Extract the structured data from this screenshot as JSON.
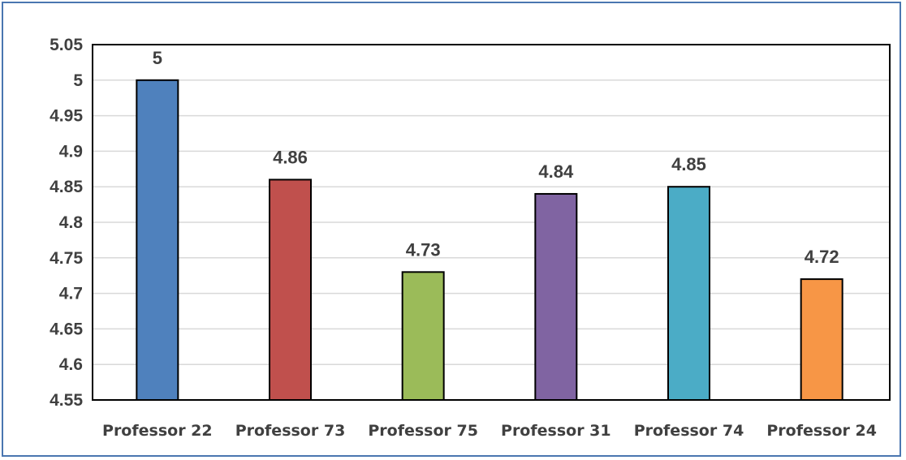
{
  "chart_data": {
    "type": "bar",
    "categories": [
      "Professor 22",
      "Professor 73",
      "Professor 75",
      "Professor 31",
      "Professor 74",
      "Professor 24"
    ],
    "values": [
      5,
      4.86,
      4.73,
      4.84,
      4.85,
      4.72
    ],
    "data_labels": [
      "5",
      "4.86",
      "4.73",
      "4.84",
      "4.85",
      "4.72"
    ],
    "colors": [
      "#4f81bd",
      "#c0504d",
      "#9bbb59",
      "#8064a2",
      "#4bacc6",
      "#f79646"
    ],
    "title": "",
    "xlabel": "",
    "ylabel": "",
    "ylim": [
      4.55,
      5.05
    ],
    "y_ticks": [
      4.55,
      4.6,
      4.65,
      4.7,
      4.75,
      4.8,
      4.85,
      4.9,
      4.95,
      5,
      5.05
    ],
    "y_tick_labels": [
      "4.55",
      "4.6",
      "4.65",
      "4.7",
      "4.75",
      "4.8",
      "4.85",
      "4.9",
      "4.95",
      "5",
      "5.05"
    ],
    "grid": true,
    "legend": "none"
  }
}
